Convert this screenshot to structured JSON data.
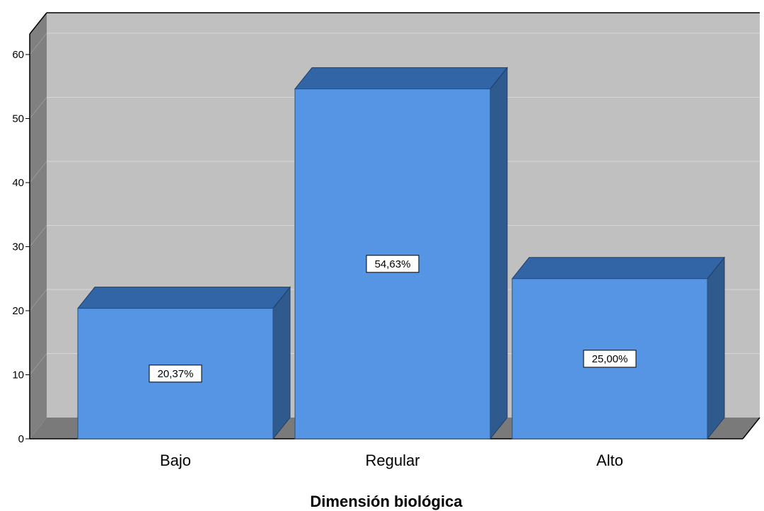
{
  "chart_data": {
    "type": "bar",
    "categories": [
      "Bajo",
      "Regular",
      "Alto"
    ],
    "values": [
      20.37,
      54.63,
      25.0
    ],
    "data_labels": [
      "20,37%",
      "54,63%",
      "25,00%"
    ],
    "xlabel": "Dimensión biológica",
    "ylabel": "",
    "ylim": [
      0,
      62
    ],
    "yticks": [
      0,
      10,
      20,
      30,
      40,
      50,
      60
    ],
    "grid": true,
    "style": "3d",
    "colors": {
      "bar_front": "#5595e3",
      "bar_top": "#3165a6",
      "bar_side": "#2f5a8e",
      "wall": "#c0c0c0",
      "floor": "#7a7a7a",
      "left_wall": "#808080",
      "gridline": "#d6d6d6"
    }
  }
}
